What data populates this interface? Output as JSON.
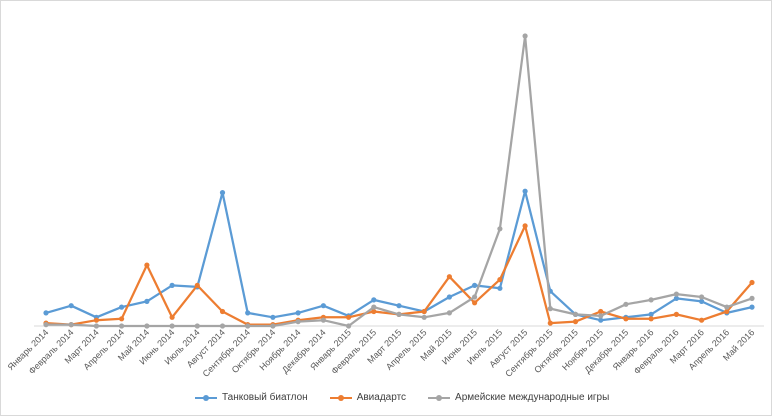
{
  "chart_data": {
    "type": "line",
    "title": "",
    "xlabel": "",
    "ylabel": "",
    "y_axis_visible": false,
    "grid": false,
    "legend_position": "bottom",
    "ylim": [
      0,
      100
    ],
    "categories": [
      "Январь 2014",
      "Февраль 2014",
      "Март 2014",
      "Апрель 2014",
      "Май 2014",
      "Июнь 2014",
      "Июль 2014",
      "Август 2014",
      "Сентябрь 2014",
      "Октябрь 2014",
      "Ноябрь 2014",
      "Декабрь 2014",
      "Январь 2015",
      "Февраль 2015",
      "Март 2015",
      "Апрель 2015",
      "Май 2015",
      "Июнь 2015",
      "Июль 2015",
      "Август 2015",
      "Сентябрь 2015",
      "Октябрь 2015",
      "Ноябрь 2015",
      "Декабрь 2015",
      "Январь 2016",
      "Февраль 2016",
      "Март 2016",
      "Апрель 2016",
      "Май 2016"
    ],
    "series": [
      {
        "name": "Танковый биатлон",
        "color": "#5b9bd5",
        "values": [
          4.5,
          7,
          3,
          6.5,
          8.5,
          14,
          13.5,
          46,
          4.5,
          3,
          4.5,
          7,
          3.5,
          9,
          7,
          5,
          10,
          14,
          13,
          46.5,
          12,
          4,
          2,
          3,
          4,
          9.5,
          8.5,
          4.5,
          6.5
        ]
      },
      {
        "name": "Авиадартс",
        "color": "#ed7d31",
        "values": [
          1,
          0.5,
          2,
          2.5,
          21,
          3,
          14,
          5,
          0.5,
          0.5,
          2,
          3,
          3,
          5,
          4,
          5,
          17,
          8,
          16,
          34.5,
          1,
          1.5,
          5,
          2.5,
          2.5,
          4,
          2,
          5,
          15
        ]
      },
      {
        "name": "Армейские международные игры",
        "color": "#a5a5a5",
        "values": [
          0.5,
          0.5,
          0,
          0,
          0,
          0,
          0,
          0,
          0,
          0,
          1.5,
          2,
          0,
          6.5,
          4,
          3,
          4.5,
          10,
          33.5,
          100,
          6,
          4,
          3.5,
          7.5,
          9,
          11,
          10,
          6.5,
          9.5
        ]
      }
    ]
  }
}
